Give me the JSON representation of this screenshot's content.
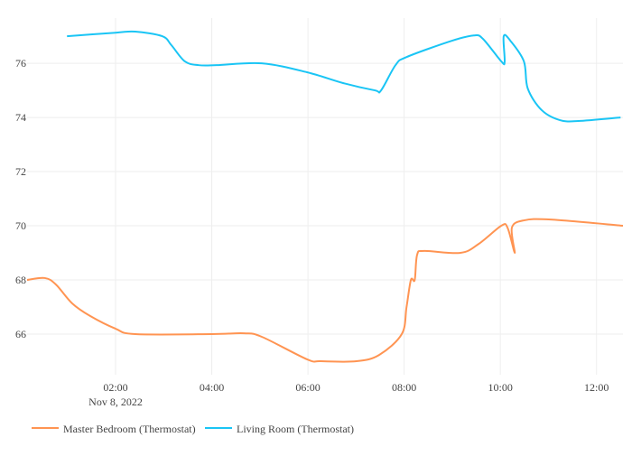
{
  "chart_data": {
    "type": "line",
    "title": "",
    "xlabel": "",
    "ylabel": "",
    "x_unit": "hours since 00:00 Nov 8, 2022",
    "xlim": [
      0.16,
      12.55
    ],
    "ylim": [
      64.5,
      77.67
    ],
    "x_ticks": [
      {
        "value": 2,
        "label": "02:00"
      },
      {
        "value": 4,
        "label": "04:00"
      },
      {
        "value": 6,
        "label": "06:00"
      },
      {
        "value": 8,
        "label": "08:00"
      },
      {
        "value": 10,
        "label": "10:00"
      },
      {
        "value": 12,
        "label": "12:00"
      }
    ],
    "x_date_label": "Nov 8, 2022",
    "y_ticks": [
      66,
      68,
      70,
      72,
      74,
      76
    ],
    "grid": true,
    "legend_position": "bottom-left",
    "series": [
      {
        "name": "Master Bedroom (Thermostat)",
        "color": "#ff9452",
        "points": [
          [
            0.16,
            68
          ],
          [
            0.53,
            68.07
          ],
          [
            0.76,
            67.83
          ],
          [
            1.1,
            67.13
          ],
          [
            1.47,
            66.67
          ],
          [
            2.0,
            66.2
          ],
          [
            2.41,
            66
          ],
          [
            4.0,
            66
          ],
          [
            4.67,
            66.03
          ],
          [
            5.04,
            65.9
          ],
          [
            5.98,
            65.07
          ],
          [
            6.26,
            65
          ],
          [
            7.01,
            65
          ],
          [
            7.48,
            65.23
          ],
          [
            7.95,
            66
          ],
          [
            8.05,
            67
          ],
          [
            8.14,
            68
          ],
          [
            8.22,
            68
          ],
          [
            8.27,
            68.93
          ],
          [
            8.42,
            69.07
          ],
          [
            9.17,
            69
          ],
          [
            9.55,
            69.33
          ],
          [
            10.02,
            70
          ],
          [
            10.15,
            69.93
          ],
          [
            10.3,
            69
          ],
          [
            10.24,
            69.93
          ],
          [
            10.49,
            70.2
          ],
          [
            11.05,
            70.23
          ],
          [
            12.55,
            70
          ]
        ]
      },
      {
        "name": "Living Room (Thermostat)",
        "color": "#1ac5f5",
        "points": [
          [
            0.99,
            77
          ],
          [
            2.0,
            77.13
          ],
          [
            2.41,
            77.17
          ],
          [
            2.97,
            77
          ],
          [
            3.16,
            76.67
          ],
          [
            3.44,
            76.07
          ],
          [
            3.73,
            75.93
          ],
          [
            4.1,
            75.93
          ],
          [
            5.04,
            76
          ],
          [
            5.98,
            75.67
          ],
          [
            6.73,
            75.27
          ],
          [
            7.39,
            75
          ],
          [
            7.52,
            75
          ],
          [
            7.82,
            75.93
          ],
          [
            8.05,
            76.23
          ],
          [
            8.99,
            76.83
          ],
          [
            9.45,
            77.03
          ],
          [
            9.64,
            76.9
          ],
          [
            10.02,
            76.07
          ],
          [
            10.09,
            76.07
          ],
          [
            10.07,
            77
          ],
          [
            10.21,
            76.83
          ],
          [
            10.49,
            76.07
          ],
          [
            10.57,
            75.07
          ],
          [
            10.86,
            74.27
          ],
          [
            11.24,
            73.9
          ],
          [
            11.62,
            73.87
          ],
          [
            12.5,
            74
          ]
        ]
      }
    ]
  }
}
